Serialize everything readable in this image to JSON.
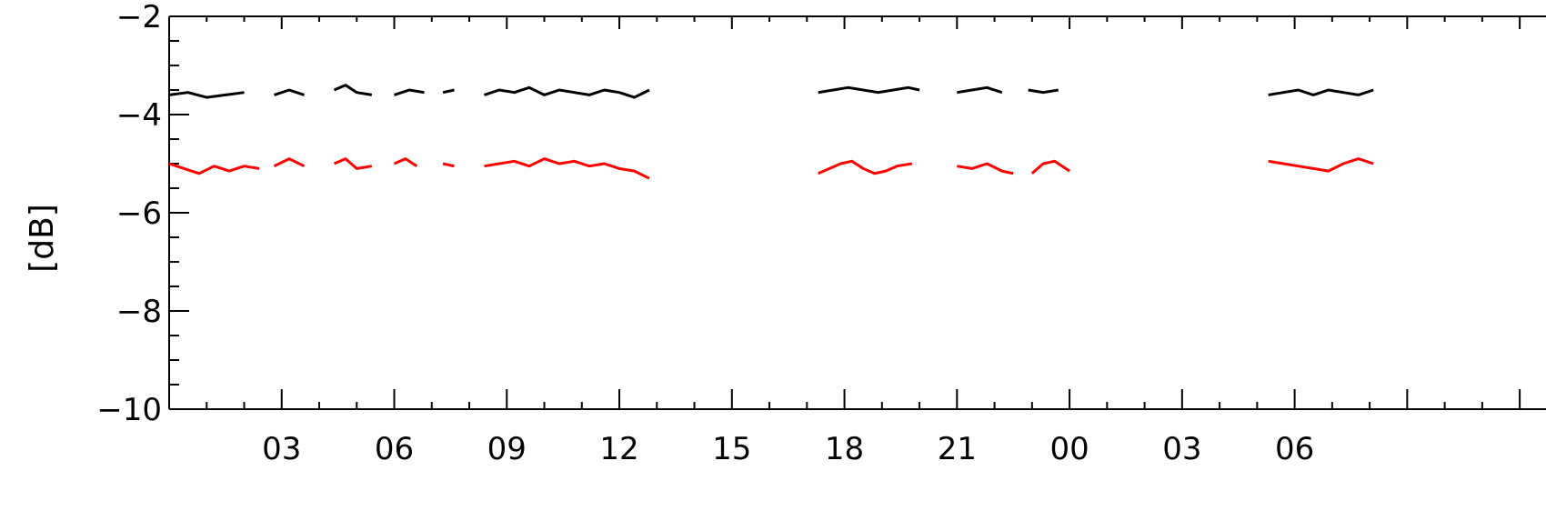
{
  "chart_data": {
    "type": "line",
    "title": "",
    "xlabel": "",
    "ylabel": "[dB]",
    "ylim": [
      -10,
      -2
    ],
    "y_major_ticks": [
      -10,
      -8,
      -6,
      -4,
      -2
    ],
    "y_minor_step": 0.5,
    "x_unit": "hours",
    "xlim": [
      0,
      36.7
    ],
    "x_ticks": [
      {
        "hours": 3,
        "label": "03"
      },
      {
        "hours": 6,
        "label": "06"
      },
      {
        "hours": 9,
        "label": "09"
      },
      {
        "hours": 12,
        "label": "12"
      },
      {
        "hours": 15,
        "label": "15"
      },
      {
        "hours": 18,
        "label": "18"
      },
      {
        "hours": 21,
        "label": "21"
      },
      {
        "hours": 24,
        "label": "00"
      },
      {
        "hours": 27,
        "label": "03"
      },
      {
        "hours": 30,
        "label": "06"
      }
    ],
    "grid": false,
    "series": [
      {
        "color": "#000000",
        "segments": [
          {
            "x": [
              0.0,
              0.5,
              1.0,
              1.5,
              2.0
            ],
            "y": [
              -3.6,
              -3.55,
              -3.65,
              -3.6,
              -3.55
            ]
          },
          {
            "x": [
              2.8,
              3.2,
              3.6
            ],
            "y": [
              -3.6,
              -3.5,
              -3.6
            ]
          },
          {
            "x": [
              4.4,
              4.7,
              5.0,
              5.4
            ],
            "y": [
              -3.5,
              -3.4,
              -3.55,
              -3.6
            ]
          },
          {
            "x": [
              6.0,
              6.4,
              6.8
            ],
            "y": [
              -3.6,
              -3.5,
              -3.55
            ]
          },
          {
            "x": [
              7.3,
              7.6
            ],
            "y": [
              -3.55,
              -3.5
            ]
          },
          {
            "x": [
              8.4,
              8.8,
              9.2,
              9.6,
              10.0,
              10.4,
              10.8,
              11.2,
              11.6,
              12.0,
              12.4,
              12.8
            ],
            "y": [
              -3.6,
              -3.5,
              -3.55,
              -3.45,
              -3.6,
              -3.5,
              -3.55,
              -3.6,
              -3.5,
              -3.55,
              -3.65,
              -3.5
            ]
          },
          {
            "x": [
              17.3,
              17.7,
              18.1,
              18.5,
              18.9,
              19.3,
              19.7,
              20.0
            ],
            "y": [
              -3.55,
              -3.5,
              -3.45,
              -3.5,
              -3.55,
              -3.5,
              -3.45,
              -3.5
            ]
          },
          {
            "x": [
              21.0,
              21.4,
              21.8,
              22.2
            ],
            "y": [
              -3.55,
              -3.5,
              -3.45,
              -3.55
            ]
          },
          {
            "x": [
              22.9,
              23.3,
              23.7
            ],
            "y": [
              -3.5,
              -3.55,
              -3.5
            ]
          },
          {
            "x": [
              29.3,
              29.7,
              30.1,
              30.5,
              30.9,
              31.3,
              31.7,
              32.1
            ],
            "y": [
              -3.6,
              -3.55,
              -3.5,
              -3.6,
              -3.5,
              -3.55,
              -3.6,
              -3.5
            ]
          }
        ]
      },
      {
        "color": "#ff0000",
        "segments": [
          {
            "x": [
              0.0,
              0.4,
              0.8,
              1.2,
              1.6,
              2.0,
              2.4
            ],
            "y": [
              -5.0,
              -5.1,
              -5.2,
              -5.05,
              -5.15,
              -5.05,
              -5.1
            ]
          },
          {
            "x": [
              2.8,
              3.2,
              3.6
            ],
            "y": [
              -5.05,
              -4.9,
              -5.05
            ]
          },
          {
            "x": [
              4.4,
              4.7,
              5.0,
              5.4
            ],
            "y": [
              -5.0,
              -4.9,
              -5.1,
              -5.05
            ]
          },
          {
            "x": [
              6.0,
              6.3,
              6.6
            ],
            "y": [
              -5.0,
              -4.9,
              -5.05
            ]
          },
          {
            "x": [
              7.3,
              7.6
            ],
            "y": [
              -5.0,
              -5.05
            ]
          },
          {
            "x": [
              8.4,
              8.8,
              9.2,
              9.6,
              10.0,
              10.4,
              10.8,
              11.2,
              11.6,
              12.0,
              12.4,
              12.8
            ],
            "y": [
              -5.05,
              -5.0,
              -4.95,
              -5.05,
              -4.9,
              -5.0,
              -4.95,
              -5.05,
              -5.0,
              -5.1,
              -5.15,
              -5.3
            ]
          },
          {
            "x": [
              17.3,
              17.6,
              17.9,
              18.2,
              18.5,
              18.8,
              19.1,
              19.4,
              19.8
            ],
            "y": [
              -5.2,
              -5.1,
              -5.0,
              -4.95,
              -5.1,
              -5.2,
              -5.15,
              -5.05,
              -5.0
            ]
          },
          {
            "x": [
              21.0,
              21.4,
              21.8,
              22.2,
              22.5
            ],
            "y": [
              -5.05,
              -5.1,
              -5.0,
              -5.15,
              -5.2
            ]
          },
          {
            "x": [
              23.0,
              23.3,
              23.6,
              24.0
            ],
            "y": [
              -5.2,
              -5.0,
              -4.95,
              -5.15
            ]
          },
          {
            "x": [
              29.3,
              29.7,
              30.1,
              30.5,
              30.9,
              31.3,
              31.7,
              32.1
            ],
            "y": [
              -4.95,
              -5.0,
              -5.05,
              -5.1,
              -5.15,
              -5.0,
              -4.9,
              -5.0
            ]
          }
        ]
      }
    ]
  }
}
